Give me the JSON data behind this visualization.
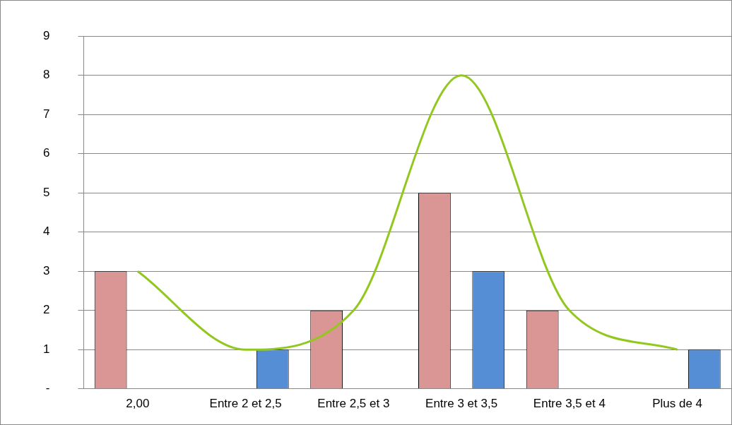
{
  "chart_data": {
    "type": "bar",
    "categories": [
      "2,00",
      "Entre 2 et 2,5",
      "Entre 2,5 et 3",
      "Entre 3 et 3,5",
      "Entre 3,5 et 4",
      "Plus de 4"
    ],
    "series": [
      {
        "color": "#d99694",
        "values": [
          3,
          null,
          2,
          5,
          2,
          null
        ]
      },
      {
        "color": "#558ed5",
        "values": [
          null,
          1,
          null,
          3,
          null,
          1
        ]
      },
      {
        "type": "line",
        "color": "#92c81e",
        "values": [
          3,
          1,
          2,
          8,
          2,
          1
        ]
      }
    ],
    "ylim": [
      0,
      9
    ],
    "yticks": [
      {
        "value": 0,
        "label": "-"
      },
      1,
      2,
      3,
      4,
      5,
      6,
      7,
      8,
      9
    ],
    "grid": "y",
    "legend": false,
    "marker": "none",
    "line_style": "solid"
  }
}
